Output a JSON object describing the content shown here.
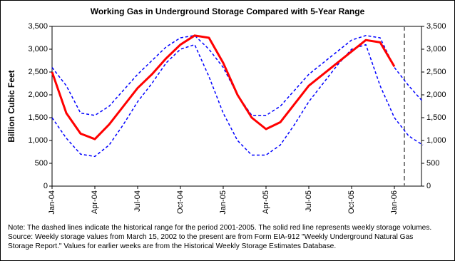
{
  "chart_data": {
    "type": "line",
    "title": "Working Gas in Underground Storage Compared with 5-Year Range",
    "y_label": "Billion Cubic Feet",
    "note": "Note:   The dashed lines indicate the historical range for the period 2001-2005.  The solid red line represents weekly storage volumes.  Source:  Weekly storage values from March 15, 2002 to the present are from Form EIA-912 \"Weekly Underground Natural Gas Storage Report.\"  Values for earlier weeks are from the Historical Weekly Storage Estimates Database.",
    "categories": [
      "Jan-04",
      null,
      null,
      "Apr-04",
      null,
      null,
      "Jul-04",
      null,
      null,
      "Oct-04",
      null,
      null,
      "Jan-05",
      null,
      null,
      "Apr-05",
      null,
      null,
      "Jul-05",
      null,
      null,
      "Oct-05",
      null,
      null,
      "Jan-06",
      null,
      null
    ],
    "series": [
      {
        "color": "#0000ff",
        "dashed": true,
        "values": [
          2600,
          2200,
          1600,
          1550,
          1750,
          2100,
          2450,
          2750,
          3050,
          3250,
          3300,
          3000,
          2600,
          2000,
          1550,
          1550,
          1750,
          2100,
          2450,
          2700,
          2950,
          3200,
          3300,
          3250,
          2600,
          2200,
          1850
        ]
      },
      {
        "color": "#0000ff",
        "dashed": true,
        "values": [
          1500,
          1050,
          700,
          650,
          900,
          1350,
          1850,
          2250,
          2700,
          3000,
          3100,
          2400,
          1600,
          1000,
          680,
          680,
          900,
          1350,
          1850,
          2250,
          2650,
          3000,
          3100,
          2200,
          1500,
          1100,
          900
        ]
      },
      {
        "color": "#ff0000",
        "dashed": false,
        "values": [
          2500,
          1600,
          1150,
          1030,
          1350,
          1750,
          2150,
          2450,
          2800,
          3100,
          3300,
          3250,
          2700,
          2000,
          1500,
          1250,
          1400,
          1800,
          2200,
          2450,
          2700,
          2950,
          3200,
          3150,
          2620,
          null,
          null
        ]
      }
    ],
    "ylim": [
      0,
      3500
    ],
    "yticks": [
      0,
      500,
      {
        "value": 1000,
        "label": "1,000"
      },
      {
        "value": 1500,
        "label": "1,500"
      },
      {
        "value": 2000,
        "label": "2,000"
      },
      {
        "value": 2500,
        "label": "2,500"
      },
      {
        "value": 3000,
        "label": "3,000"
      },
      {
        "value": 3500,
        "label": "3,500"
      }
    ],
    "y2lim": [
      0,
      3500
    ],
    "y2ticks": [
      0,
      500,
      {
        "value": 1000,
        "label": "1,000"
      },
      {
        "value": 1500,
        "label": "1,500"
      },
      {
        "value": 2000,
        "label": "2,000"
      },
      {
        "value": 2500,
        "label": "2,500"
      },
      {
        "value": 3000,
        "label": "3,000"
      },
      {
        "value": 3500,
        "label": "3,500"
      }
    ],
    "grid": false
  }
}
